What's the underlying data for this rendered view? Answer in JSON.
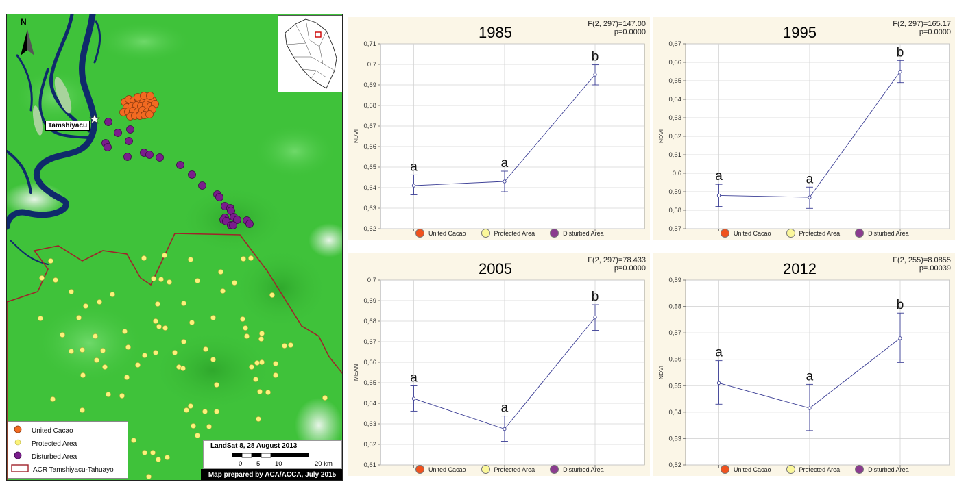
{
  "map": {
    "north_label": "N",
    "town_label": "Tamshiyacu",
    "legend": [
      {
        "label": "United Cacao",
        "color": "#f26a21",
        "icon": "orange-circle"
      },
      {
        "label": "Protected Area",
        "color": "#fbf27a",
        "icon": "yellow-circle"
      },
      {
        "label": "Disturbed Area",
        "color": "#7a1d8c",
        "icon": "purple-circle"
      },
      {
        "label": "ACR Tamshiyacu-Tahuayo",
        "color": "#a0222a",
        "icon": "red-outline-square"
      }
    ],
    "scale": {
      "title": "LandSat 8, 28 August 2013",
      "ticks": [
        "0",
        "5",
        "10",
        "20 km"
      ]
    },
    "credit": "Map prepared by ACA/ACCA, July 2015"
  },
  "chart_data": [
    {
      "type": "line",
      "title": "1985",
      "stat": [
        "F(2, 297)=147.00",
        "p=0.0000"
      ],
      "ylabel": "NDVI",
      "ylim": [
        0.62,
        0.71
      ],
      "yticks": [
        "0,62",
        "0,63",
        "0,64",
        "0,65",
        "0,66",
        "0,67",
        "0,68",
        "0,69",
        "0,7",
        "0,71"
      ],
      "x": [
        "United Cacao",
        "Protected Area",
        "Disturbed Area"
      ],
      "mean": [
        0.641,
        0.643,
        0.695
      ],
      "ci_low": [
        0.6365,
        0.638,
        0.69
      ],
      "ci_high": [
        0.6462,
        0.648,
        0.6998
      ],
      "group_letters": [
        "a",
        "a",
        "b"
      ]
    },
    {
      "type": "line",
      "title": "1995",
      "stat": [
        "F(2, 297)=165.17",
        "p=0.0000"
      ],
      "ylabel": "NDVI",
      "ylim": [
        0.57,
        0.67
      ],
      "yticks": [
        "0,57",
        "0,58",
        "0,59",
        "0,6",
        "0,61",
        "0,62",
        "0,63",
        "0,64",
        "0,65",
        "0,66",
        "0,67"
      ],
      "x": [
        "United Cacao",
        "Protected Area",
        "Disturbed Area"
      ],
      "mean": [
        0.588,
        0.587,
        0.655
      ],
      "ci_low": [
        0.582,
        0.581,
        0.649
      ],
      "ci_high": [
        0.594,
        0.5925,
        0.661
      ],
      "group_letters": [
        "a",
        "a",
        "b"
      ]
    },
    {
      "type": "line",
      "title": "2005",
      "stat": [
        "F(2, 297)=78.433",
        "p=0.0000"
      ],
      "ylabel": "MEAN",
      "ylim": [
        0.61,
        0.7
      ],
      "yticks": [
        "0,61",
        "0,62",
        "0,63",
        "0,64",
        "0,65",
        "0,66",
        "0,67",
        "0,68",
        "0,69",
        "0,7"
      ],
      "x": [
        "United Cacao",
        "Protected Area",
        "Disturbed Area"
      ],
      "mean": [
        0.6423,
        0.6275,
        0.6818
      ],
      "ci_low": [
        0.6362,
        0.6215,
        0.6755
      ],
      "ci_high": [
        0.6485,
        0.6338,
        0.688
      ],
      "group_letters": [
        "a",
        "a",
        "b"
      ]
    },
    {
      "type": "line",
      "title": "2012",
      "stat": [
        "F(2, 255)=8.0855",
        "p=.00039"
      ],
      "ylabel": "NDVI",
      "ylim": [
        0.52,
        0.59
      ],
      "yticks": [
        "0,52",
        "0,53",
        "0,54",
        "0,55",
        "0,56",
        "0,57",
        "0,58",
        "0,59"
      ],
      "x": [
        "United Cacao",
        "Protected Area",
        "Disturbed Area"
      ],
      "mean": [
        0.551,
        0.5415,
        0.568
      ],
      "ci_low": [
        0.543,
        0.533,
        0.5588
      ],
      "ci_high": [
        0.5595,
        0.5505,
        0.5775
      ],
      "group_letters": [
        "a",
        "a",
        "b"
      ]
    }
  ],
  "chart_legend": [
    {
      "label": "United Cacao",
      "color": "#f0521e"
    },
    {
      "label": "Protected Area",
      "color": "#fbf79a"
    },
    {
      "label": "Disturbed Area",
      "color": "#8b3c8f"
    }
  ],
  "colors": {
    "line": "#3b3e95",
    "grid": "#d4d4d4",
    "river": "#0f2a6b",
    "boundary": "#a0222a",
    "vegetation": "#3fc23a"
  }
}
